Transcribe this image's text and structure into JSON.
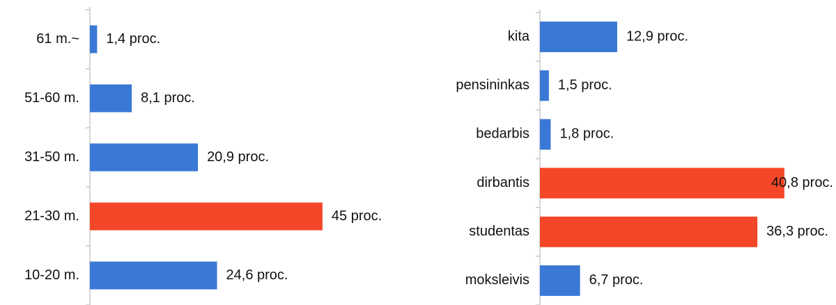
{
  "chart_data": [
    {
      "type": "barh",
      "categories": [
        "61 m.~",
        "51-60 m.",
        "31-50 m.",
        "21-30 m.",
        "10-20 m."
      ],
      "values": [
        1.4,
        8.1,
        20.9,
        45,
        24.6
      ],
      "value_labels": [
        "1,4 proc.",
        "8,1 proc.",
        "20,9 proc.",
        "45 proc.",
        "24,6 proc."
      ],
      "colors": [
        "#3a78d6",
        "#3a78d6",
        "#3a78d6",
        "#f4472a",
        "#3a78d6"
      ],
      "xlim": [
        0,
        50
      ]
    },
    {
      "type": "barh",
      "categories": [
        "kita",
        "pensininkas",
        "bedarbis",
        "dirbantis",
        "studentas",
        "moksleivis"
      ],
      "values": [
        12.9,
        1.5,
        1.8,
        40.8,
        36.3,
        6.7
      ],
      "value_labels": [
        "12,9 proc.",
        "1,5 proc.",
        "1,8 proc.",
        "40,8 proc.",
        "36,3 proc.",
        "6,7 proc."
      ],
      "colors": [
        "#3a78d6",
        "#3a78d6",
        "#3a78d6",
        "#f4472a",
        "#f4472a",
        "#3a78d6"
      ],
      "xlim": [
        0,
        45
      ]
    }
  ]
}
